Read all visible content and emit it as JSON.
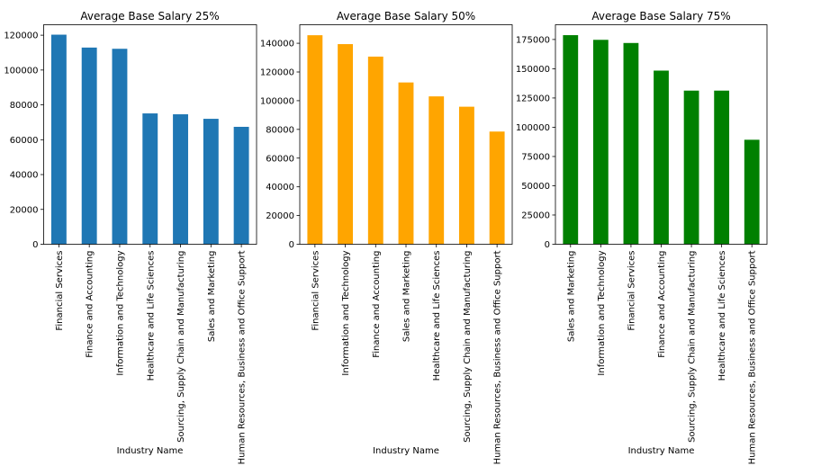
{
  "chart_data": [
    {
      "type": "bar",
      "title": "Average Base Salary 25%",
      "xlabel": "Industry Name",
      "ylabel": "",
      "color": "#1f77b4",
      "categories": [
        "Financial Services",
        "Finance and Accounting",
        "Information and Technology",
        "Healthcare and Life Sciences",
        "Sourcing, Supply Chain and Manufacturing",
        "Sales and Marketing",
        "Human Resources, Business and Office Support"
      ],
      "values": [
        120300,
        112900,
        112200,
        75100,
        74600,
        72000,
        67400
      ],
      "ylim": [
        0,
        126000
      ],
      "yticks": [
        0,
        20000,
        40000,
        60000,
        80000,
        100000,
        120000
      ],
      "ytick_labels": [
        "0",
        "20000",
        "40000",
        "60000",
        "80000",
        "100000",
        "120000"
      ],
      "grid": false,
      "legend": "none"
    },
    {
      "type": "bar",
      "title": "Average Base Salary 50%",
      "xlabel": "Industry Name",
      "ylabel": "",
      "color": "#ffa500",
      "categories": [
        "Financial Services",
        "Information and Technology",
        "Finance and Accounting",
        "Sales and Marketing",
        "Healthcare and Life Sciences",
        "Sourcing, Supply Chain and Manufacturing",
        "Human Resources, Business and Office Support"
      ],
      "values": [
        145600,
        139400,
        130700,
        112700,
        103000,
        95800,
        78500
      ],
      "ylim": [
        0,
        152900
      ],
      "yticks": [
        0,
        20000,
        40000,
        60000,
        80000,
        100000,
        120000,
        140000
      ],
      "ytick_labels": [
        "0",
        "20000",
        "40000",
        "60000",
        "80000",
        "100000",
        "120000",
        "140000"
      ],
      "grid": false,
      "legend": "none"
    },
    {
      "type": "bar",
      "title": "Average Base Salary 75%",
      "xlabel": "Industry Name",
      "ylabel": "",
      "color": "#008000",
      "categories": [
        "Sales and Marketing",
        "Information and Technology",
        "Financial Services",
        "Finance and Accounting",
        "Sourcing, Supply Chain and Manufacturing",
        "Healthcare and Life Sciences",
        "Human Resources, Business and Office Support"
      ],
      "values": [
        178700,
        174700,
        172000,
        148400,
        131300,
        131300,
        89300
      ],
      "ylim": [
        0,
        187600
      ],
      "yticks": [
        0,
        25000,
        50000,
        75000,
        100000,
        125000,
        150000,
        175000
      ],
      "ytick_labels": [
        "0",
        "25000",
        "50000",
        "75000",
        "100000",
        "125000",
        "150000",
        "175000"
      ],
      "grid": false,
      "legend": "none"
    }
  ]
}
